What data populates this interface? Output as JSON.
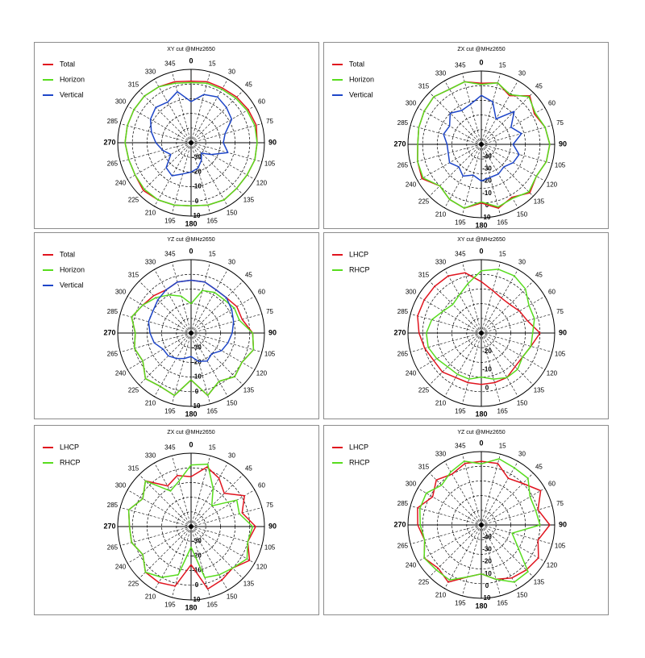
{
  "colors": {
    "Total": "#e0141e",
    "Horizon": "#58dc1e",
    "Vertical": "#1e46c8",
    "LHCP": "#e0141e",
    "RHCP": "#58dc1e"
  },
  "chart_data": [
    {
      "type": "polar-line",
      "title": "XY cut @MHz2650",
      "angle_ticks": [
        "0",
        "15",
        "30",
        "45",
        "60",
        "75",
        "90",
        "105",
        "120",
        "135",
        "150",
        "165",
        "180",
        "195",
        "210",
        "225",
        "240",
        "265",
        "270",
        "285",
        "300",
        "315",
        "330",
        "345"
      ],
      "radial_labels": [
        "-30",
        "-20",
        "-10",
        "0",
        "10"
      ],
      "r_min": -40,
      "r_max": 10,
      "legend": [
        "Total",
        "Horizon",
        "Vertical"
      ],
      "series": [
        {
          "name": "Total",
          "values": [
            2,
            3,
            3,
            4,
            5,
            6,
            5,
            5,
            4,
            4,
            5,
            4,
            3,
            4,
            5,
            6,
            4,
            4,
            5,
            5,
            5,
            5,
            4,
            3
          ]
        },
        {
          "name": "Horizon",
          "values": [
            1,
            2,
            2,
            3,
            4,
            5,
            5,
            5,
            4,
            4,
            5,
            4,
            3,
            4,
            5,
            5,
            4,
            4,
            5,
            5,
            5,
            5,
            4,
            2
          ]
        },
        {
          "name": "Vertical",
          "values": [
            -12,
            -6,
            -4,
            -6,
            -8,
            -16,
            -18,
            -14,
            -24,
            -30,
            -26,
            -22,
            -20,
            -18,
            -14,
            -16,
            -24,
            -20,
            -16,
            -12,
            -8,
            -6,
            -8,
            -4
          ]
        }
      ]
    },
    {
      "type": "polar-line",
      "title": "ZX cut @MHz2650",
      "angle_ticks": [
        "0",
        "15",
        "30",
        "45",
        "60",
        "75",
        "90",
        "105",
        "120",
        "135",
        "150",
        "165",
        "180",
        "195",
        "210",
        "225",
        "240",
        "265",
        "270",
        "285",
        "300",
        "315",
        "330",
        "345"
      ],
      "radial_labels": [
        "-40",
        "-30",
        "-20",
        "-10",
        "0",
        "10"
      ],
      "r_min": -50,
      "r_max": 10,
      "legend": [
        "Total",
        "Horizon",
        "Vertical"
      ],
      "series": [
        {
          "name": "Total",
          "values": [
            0,
            2,
            -4,
            6,
            0,
            4,
            6,
            5,
            2,
            6,
            0,
            4,
            -2,
            4,
            2,
            -2,
            6,
            4,
            2,
            3,
            4,
            5,
            2,
            3
          ]
        },
        {
          "name": "Horizon",
          "values": [
            -1,
            2,
            -3,
            5,
            1,
            4,
            6,
            5,
            2,
            5,
            1,
            3,
            -3,
            4,
            2,
            -2,
            5,
            4,
            2,
            3,
            4,
            5,
            2,
            3
          ]
        },
        {
          "name": "Vertical",
          "values": [
            -10,
            -14,
            -26,
            -12,
            -22,
            -16,
            -24,
            -18,
            -20,
            -24,
            -22,
            -22,
            -20,
            -24,
            -20,
            -24,
            -20,
            -22,
            -22,
            -18,
            -20,
            -14,
            -18,
            -16
          ]
        }
      ]
    },
    {
      "type": "polar-line",
      "title": "YZ cut @MHz2650",
      "angle_ticks": [
        "0",
        "15",
        "30",
        "45",
        "60",
        "75",
        "90",
        "105",
        "120",
        "135",
        "150",
        "165",
        "180",
        "195",
        "210",
        "225",
        "240",
        "265",
        "270",
        "285",
        "300",
        "315",
        "330",
        "345"
      ],
      "radial_labels": [
        "-30",
        "-20",
        "-10",
        "0",
        "10"
      ],
      "r_min": -40,
      "r_max": 10,
      "legend": [
        "Total",
        "Horizon",
        "Vertical"
      ],
      "series": [
        {
          "name": "Total",
          "values": [
            -4,
            -4,
            -6,
            -6,
            -4,
            -4,
            2,
            4,
            0,
            2,
            -2,
            4,
            -8,
            4,
            2,
            4,
            -2,
            0,
            -2,
            2,
            -2,
            -4,
            -6,
            -4
          ]
        },
        {
          "name": "Horizon",
          "values": [
            -20,
            -10,
            -8,
            -8,
            -6,
            -6,
            2,
            4,
            0,
            2,
            -2,
            4,
            -8,
            4,
            2,
            4,
            -2,
            0,
            -2,
            2,
            -2,
            -6,
            -10,
            -14
          ]
        },
        {
          "name": "Vertical",
          "values": [
            -4,
            -4,
            -6,
            -6,
            -8,
            -10,
            -12,
            -14,
            -16,
            -20,
            -18,
            -20,
            -24,
            -22,
            -20,
            -18,
            -18,
            -14,
            -12,
            -10,
            -10,
            -8,
            -6,
            -4
          ]
        }
      ]
    },
    {
      "type": "polar-line",
      "title": "XY cut @MHz2650",
      "angle_ticks": [
        "0",
        "15",
        "30",
        "45",
        "60",
        "75",
        "90",
        "105",
        "120",
        "135",
        "150",
        "165",
        "180",
        "195",
        "210",
        "225",
        "240",
        "265",
        "270",
        "285",
        "300",
        "315",
        "330",
        "345"
      ],
      "radial_labels": [
        "-20",
        "-10",
        "0"
      ],
      "r_min": -30,
      "r_max": 10,
      "legend": [
        "LHCP",
        "RHCP"
      ],
      "series": [
        {
          "name": "LHCP",
          "values": [
            -2,
            -6,
            -8,
            -8,
            -6,
            -4,
            2,
            -2,
            -4,
            -4,
            -2,
            -2,
            -2,
            -2,
            -2,
            0,
            0,
            2,
            4,
            6,
            6,
            6,
            6,
            4
          ]
        },
        {
          "name": "RHCP",
          "values": [
            4,
            6,
            6,
            4,
            0,
            0,
            -2,
            -2,
            -4,
            -2,
            -2,
            -4,
            -6,
            -4,
            -4,
            -4,
            -2,
            0,
            0,
            -2,
            -6,
            -8,
            -6,
            -2
          ]
        }
      ]
    },
    {
      "type": "polar-line",
      "title": "ZX cut @MHz2650",
      "angle_ticks": [
        "0",
        "15",
        "30",
        "45",
        "60",
        "75",
        "90",
        "105",
        "120",
        "135",
        "150",
        "165",
        "180",
        "195",
        "210",
        "225",
        "240",
        "265",
        "270",
        "285",
        "300",
        "315",
        "330",
        "345"
      ],
      "radial_labels": [
        "-30",
        "-20",
        "-10",
        "0",
        "10"
      ],
      "r_min": -40,
      "r_max": 10,
      "legend": [
        "LHCP",
        "RHCP"
      ],
      "series": [
        {
          "name": "LHCP",
          "values": [
            -6,
            2,
            -2,
            -8,
            2,
            -4,
            4,
            0,
            6,
            0,
            2,
            4,
            -14,
            2,
            4,
            4,
            -2,
            2,
            2,
            4,
            -2,
            4,
            -8,
            -4
          ]
        },
        {
          "name": "RHCP",
          "values": [
            2,
            4,
            -10,
            -20,
            -4,
            -6,
            2,
            0,
            4,
            0,
            -2,
            -4,
            -26,
            -6,
            0,
            4,
            -2,
            2,
            2,
            4,
            -2,
            4,
            -12,
            -8
          ]
        }
      ]
    },
    {
      "type": "polar-line",
      "title": "YZ cut @MHz2650",
      "angle_ticks": [
        "0",
        "15",
        "30",
        "45",
        "60",
        "75",
        "90",
        "105",
        "120",
        "135",
        "150",
        "165",
        "180",
        "195",
        "210",
        "225",
        "240",
        "265",
        "270",
        "285",
        "300",
        "315",
        "330",
        "345"
      ],
      "radial_labels": [
        "-40",
        "-30",
        "-20",
        "-10",
        "0",
        "10"
      ],
      "r_min": -50,
      "r_max": 10,
      "legend": [
        "LHCP",
        "RHCP"
      ],
      "series": [
        {
          "name": "LHCP",
          "values": [
            2,
            2,
            -6,
            -2,
            6,
            -2,
            6,
            -2,
            4,
            2,
            0,
            -4,
            -10,
            -6,
            4,
            0,
            4,
            -2,
            2,
            4,
            -4,
            2,
            -2,
            2
          ]
        },
        {
          "name": "RHCP",
          "values": [
            0,
            6,
            4,
            4,
            -4,
            -4,
            -2,
            -24,
            -16,
            4,
            4,
            -4,
            -10,
            -6,
            2,
            2,
            4,
            -2,
            0,
            2,
            2,
            -4,
            0,
            4
          ]
        }
      ]
    }
  ]
}
